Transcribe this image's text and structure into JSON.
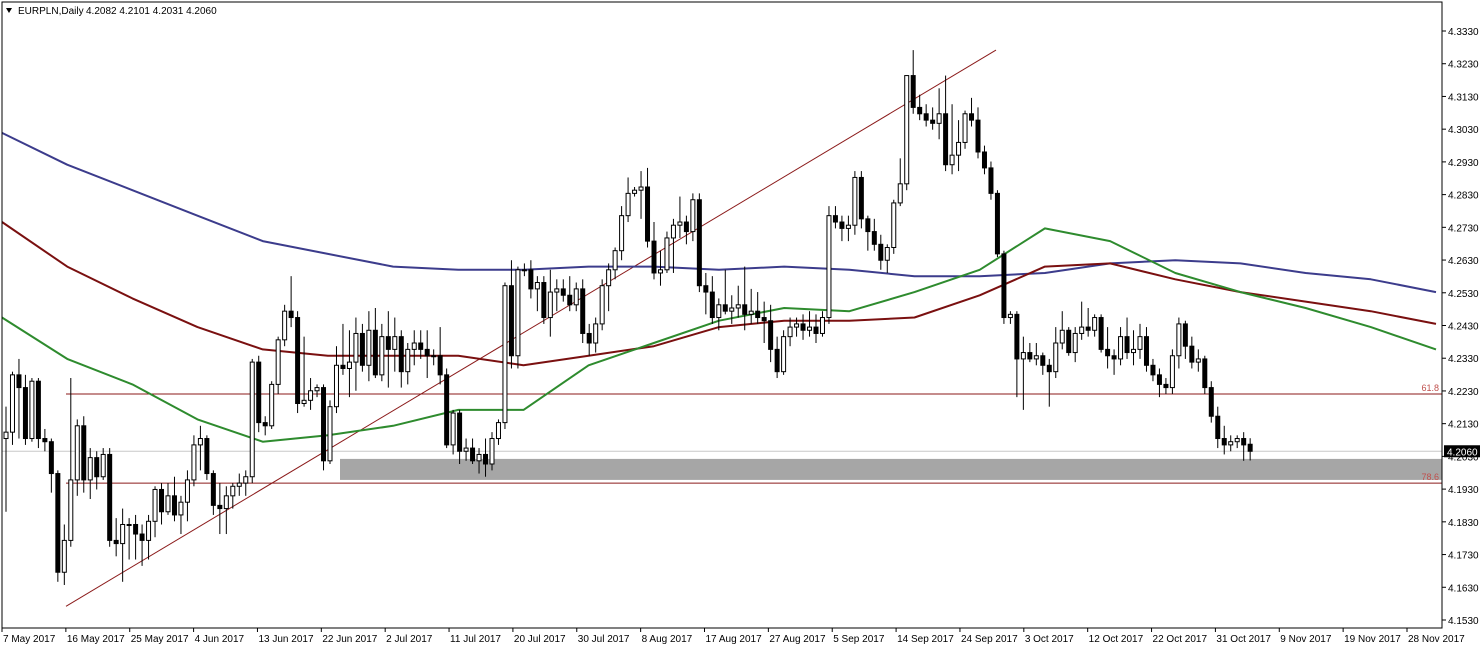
{
  "window": {
    "symbol_label": "EURPLN,Daily",
    "ohlc_label": "4.2082 4.2101 4.2031 4.2060",
    "current_price_label": "4.2060"
  },
  "chart_data": {
    "type": "candlestick",
    "symbol": "EURPLN",
    "timeframe": "Daily",
    "ylim": [
      4.153,
      4.338
    ],
    "y_ticks": [
      "4.3330",
      "4.3230",
      "4.3130",
      "4.3030",
      "4.2930",
      "4.2830",
      "4.2730",
      "4.2630",
      "4.2530",
      "4.2430",
      "4.2330",
      "4.2230",
      "4.2130",
      "4.2030",
      "4.1930",
      "4.1830",
      "4.1730",
      "4.1630",
      "4.1530"
    ],
    "x_ticks": [
      "7 May 2017",
      "16 May 2017",
      "25 May 2017",
      "4 Jun 2017",
      "13 Jun 2017",
      "22 Jun 2017",
      "2 Jul 2017",
      "11 Jul 2017",
      "20 Jul 2017",
      "30 Jul 2017",
      "8 Aug 2017",
      "17 Aug 2017",
      "27 Aug 2017",
      "5 Sep 2017",
      "14 Sep 2017",
      "24 Sep 2017",
      "3 Oct 2017",
      "12 Oct 2017",
      "22 Oct 2017",
      "31 Oct 2017",
      "9 Nov 2017",
      "19 Nov 2017",
      "28 Nov 2017"
    ],
    "colors": {
      "bull": "#ffffff",
      "bear": "#000000",
      "outline": "#000000",
      "ma_blue": "#3c3c8c",
      "ma_red": "#7a1010",
      "ma_green": "#2e8b2e",
      "fib_line": "#8b1a1a",
      "fib_label": "#c0504d",
      "zone": "#a6a6a6",
      "trend_line": "#8b1a1a",
      "grid_price_line": "#c8c8c8"
    },
    "price_line": 4.206,
    "zone": {
      "low": 4.197,
      "high": 4.2036
    },
    "fib_levels": [
      {
        "label": "61.8",
        "price": 4.224
      },
      {
        "label": "78.6",
        "price": 4.196
      }
    ],
    "trend_line": {
      "from": {
        "date": "16 May 2017",
        "price": 4.1573
      },
      "to": {
        "date": "26 Sep 2017",
        "price": 4.332
      }
    },
    "candles": [
      [
        4.21,
        4.22,
        4.187,
        4.212
      ],
      [
        4.212,
        4.231,
        4.208,
        4.23
      ],
      [
        4.23,
        4.235,
        4.21,
        4.226
      ],
      [
        4.226,
        4.23,
        4.208,
        4.21
      ],
      [
        4.21,
        4.229,
        4.209,
        4.228
      ],
      [
        4.228,
        4.229,
        4.207,
        4.21
      ],
      [
        4.21,
        4.213,
        4.206,
        4.209
      ],
      [
        4.209,
        4.21,
        4.193,
        4.199
      ],
      [
        4.199,
        4.2,
        4.165,
        4.168
      ],
      [
        4.168,
        4.183,
        4.164,
        4.178
      ],
      [
        4.178,
        4.229,
        4.176,
        4.197
      ],
      [
        4.197,
        4.216,
        4.192,
        4.214
      ],
      [
        4.214,
        4.217,
        4.193,
        4.197
      ],
      [
        4.197,
        4.207,
        4.191,
        4.204
      ],
      [
        4.204,
        4.206,
        4.194,
        4.198
      ],
      [
        4.198,
        4.207,
        4.197,
        4.205
      ],
      [
        4.205,
        4.207,
        4.176,
        4.178
      ],
      [
        4.178,
        4.185,
        4.173,
        4.177
      ],
      [
        4.177,
        4.188,
        4.165,
        4.183
      ],
      [
        4.183,
        4.185,
        4.172,
        4.183
      ],
      [
        4.183,
        4.186,
        4.172,
        4.18
      ],
      [
        4.18,
        4.183,
        4.17,
        4.178
      ],
      [
        4.178,
        4.186,
        4.172,
        4.184
      ],
      [
        4.184,
        4.195,
        4.179,
        4.194
      ],
      [
        4.194,
        4.196,
        4.183,
        4.187
      ],
      [
        4.187,
        4.196,
        4.186,
        4.192
      ],
      [
        4.192,
        4.198,
        4.184,
        4.186
      ],
      [
        4.186,
        4.192,
        4.18,
        4.19
      ],
      [
        4.19,
        4.2,
        4.184,
        4.197
      ],
      [
        4.197,
        4.211,
        4.195,
        4.208
      ],
      [
        4.208,
        4.214,
        4.2,
        4.21
      ],
      [
        4.21,
        4.211,
        4.197,
        4.199
      ],
      [
        4.199,
        4.2,
        4.186,
        4.189
      ],
      [
        4.189,
        4.196,
        4.18,
        4.188
      ],
      [
        4.188,
        4.195,
        4.18,
        4.192
      ],
      [
        4.192,
        4.196,
        4.188,
        4.195
      ],
      [
        4.195,
        4.199,
        4.192,
        4.196
      ],
      [
        4.196,
        4.2,
        4.192,
        4.198
      ],
      [
        4.198,
        4.235,
        4.196,
        4.234
      ],
      [
        4.234,
        4.236,
        4.212,
        4.215
      ],
      [
        4.215,
        4.217,
        4.211,
        4.214
      ],
      [
        4.214,
        4.228,
        4.213,
        4.227
      ],
      [
        4.227,
        4.242,
        4.224,
        4.241
      ],
      [
        4.241,
        4.252,
        4.239,
        4.25
      ],
      [
        4.25,
        4.261,
        4.245,
        4.248
      ],
      [
        4.248,
        4.25,
        4.218,
        4.221
      ],
      [
        4.221,
        4.242,
        4.22,
        4.222
      ],
      [
        4.222,
        4.229,
        4.219,
        4.225
      ],
      [
        4.225,
        4.227,
        4.223,
        4.226
      ],
      [
        4.226,
        4.227,
        4.2,
        4.203
      ],
      [
        4.203,
        4.222,
        4.202,
        4.22
      ],
      [
        4.22,
        4.239,
        4.218,
        4.233
      ],
      [
        4.233,
        4.246,
        4.23,
        4.232
      ],
      [
        4.232,
        4.244,
        4.223,
        4.234
      ],
      [
        4.234,
        4.248,
        4.225,
        4.243
      ],
      [
        4.243,
        4.246,
        4.231,
        4.233
      ],
      [
        4.233,
        4.25,
        4.228,
        4.244
      ],
      [
        4.244,
        4.251,
        4.229,
        4.23
      ],
      [
        4.23,
        4.246,
        4.228,
        4.242
      ],
      [
        4.242,
        4.25,
        4.226,
        4.238
      ],
      [
        4.238,
        4.248,
        4.231,
        4.242
      ],
      [
        4.242,
        4.244,
        4.226,
        4.231
      ],
      [
        4.231,
        4.24,
        4.227,
        4.238
      ],
      [
        4.238,
        4.244,
        4.233,
        4.24
      ],
      [
        4.24,
        4.244,
        4.235,
        4.238
      ],
      [
        4.238,
        4.244,
        4.229,
        4.236
      ],
      [
        4.236,
        4.238,
        4.233,
        4.236
      ],
      [
        4.236,
        4.245,
        4.227,
        4.23
      ],
      [
        4.23,
        4.232,
        4.207,
        4.208
      ],
      [
        4.208,
        4.219,
        4.205,
        4.218
      ],
      [
        4.218,
        4.219,
        4.202,
        4.206
      ],
      [
        4.206,
        4.21,
        4.203,
        4.207
      ],
      [
        4.207,
        4.21,
        4.202,
        4.203
      ],
      [
        4.203,
        4.207,
        4.199,
        4.205
      ],
      [
        4.205,
        4.21,
        4.198,
        4.202
      ],
      [
        4.202,
        4.212,
        4.2,
        4.21
      ],
      [
        4.21,
        4.216,
        4.208,
        4.215
      ],
      [
        4.215,
        4.259,
        4.213,
        4.258
      ],
      [
        4.258,
        4.266,
        4.232,
        4.236
      ],
      [
        4.236,
        4.264,
        4.232,
        4.263
      ],
      [
        4.263,
        4.265,
        4.261,
        4.263
      ],
      [
        4.263,
        4.266,
        4.254,
        4.257
      ],
      [
        4.257,
        4.261,
        4.25,
        4.259
      ],
      [
        4.259,
        4.261,
        4.246,
        4.248
      ],
      [
        4.248,
        4.263,
        4.242,
        4.256
      ],
      [
        4.256,
        4.26,
        4.25,
        4.257
      ],
      [
        4.257,
        4.26,
        4.253,
        4.255
      ],
      [
        4.255,
        4.261,
        4.25,
        4.252
      ],
      [
        4.252,
        4.259,
        4.25,
        4.257
      ],
      [
        4.257,
        4.26,
        4.24,
        4.243
      ],
      [
        4.243,
        4.246,
        4.236,
        4.24
      ],
      [
        4.24,
        4.248,
        4.237,
        4.246
      ],
      [
        4.246,
        4.26,
        4.244,
        4.258
      ],
      [
        4.258,
        4.265,
        4.25,
        4.263
      ],
      [
        4.263,
        4.27,
        4.26,
        4.269
      ],
      [
        4.269,
        4.283,
        4.266,
        4.28
      ],
      [
        4.28,
        4.292,
        4.278,
        4.287
      ],
      [
        4.287,
        4.289,
        4.286,
        4.288
      ],
      [
        4.288,
        4.294,
        4.279,
        4.289
      ],
      [
        4.289,
        4.295,
        4.27,
        4.272
      ],
      [
        4.272,
        4.278,
        4.26,
        4.262
      ],
      [
        4.262,
        4.269,
        4.258,
        4.263
      ],
      [
        4.263,
        4.275,
        4.262,
        4.273
      ],
      [
        4.273,
        4.279,
        4.262,
        4.277
      ],
      [
        4.277,
        4.286,
        4.273,
        4.278
      ],
      [
        4.278,
        4.28,
        4.271,
        4.275
      ],
      [
        4.275,
        4.287,
        4.272,
        4.285
      ],
      [
        4.285,
        4.287,
        4.256,
        4.258
      ],
      [
        4.258,
        4.262,
        4.249,
        4.256
      ],
      [
        4.256,
        4.261,
        4.246,
        4.248
      ],
      [
        4.248,
        4.254,
        4.244,
        4.252
      ],
      [
        4.252,
        4.263,
        4.249,
        4.25
      ],
      [
        4.25,
        4.255,
        4.246,
        4.251
      ],
      [
        4.251,
        4.258,
        4.248,
        4.252
      ],
      [
        4.252,
        4.264,
        4.244,
        4.249
      ],
      [
        4.249,
        4.257,
        4.246,
        4.25
      ],
      [
        4.25,
        4.256,
        4.246,
        4.248
      ],
      [
        4.248,
        4.253,
        4.24,
        4.247
      ],
      [
        4.247,
        4.252,
        4.234,
        4.238
      ],
      [
        4.238,
        4.242,
        4.229,
        4.231
      ],
      [
        4.231,
        4.244,
        4.23,
        4.242
      ],
      [
        4.242,
        4.248,
        4.239,
        4.245
      ],
      [
        4.245,
        4.248,
        4.242,
        4.246
      ],
      [
        4.246,
        4.249,
        4.241,
        4.244
      ],
      [
        4.244,
        4.25,
        4.242,
        4.245
      ],
      [
        4.245,
        4.249,
        4.24,
        4.243
      ],
      [
        4.243,
        4.25,
        4.242,
        4.248
      ],
      [
        4.248,
        4.283,
        4.246,
        4.28
      ],
      [
        4.28,
        4.283,
        4.276,
        4.278
      ],
      [
        4.278,
        4.28,
        4.272,
        4.276
      ],
      [
        4.276,
        4.28,
        4.272,
        4.277
      ],
      [
        4.277,
        4.294,
        4.274,
        4.292
      ],
      [
        4.292,
        4.294,
        4.276,
        4.279
      ],
      [
        4.279,
        4.28,
        4.269,
        4.275
      ],
      [
        4.275,
        4.279,
        4.269,
        4.271
      ],
      [
        4.271,
        4.274,
        4.263,
        4.266
      ],
      [
        4.266,
        4.271,
        4.262,
        4.27
      ],
      [
        4.27,
        4.285,
        4.268,
        4.284
      ],
      [
        4.284,
        4.298,
        4.283,
        4.29
      ],
      [
        4.29,
        4.324,
        4.288,
        4.324
      ],
      [
        4.324,
        4.332,
        4.312,
        4.314
      ],
      [
        4.314,
        4.318,
        4.31,
        4.312
      ],
      [
        4.312,
        4.315,
        4.308,
        4.31
      ],
      [
        4.31,
        4.314,
        4.307,
        4.309
      ],
      [
        4.309,
        4.32,
        4.304,
        4.312
      ],
      [
        4.312,
        4.324,
        4.294,
        4.296
      ],
      [
        4.296,
        4.315,
        4.293,
        4.299
      ],
      [
        4.299,
        4.31,
        4.294,
        4.303
      ],
      [
        4.303,
        4.313,
        4.301,
        4.312
      ],
      [
        4.312,
        4.317,
        4.308,
        4.31
      ],
      [
        4.31,
        4.314,
        4.298,
        4.3
      ],
      [
        4.3,
        4.302,
        4.293,
        4.295
      ],
      [
        4.295,
        4.297,
        4.285,
        4.287
      ],
      [
        4.287,
        4.288,
        4.267,
        4.268
      ],
      [
        4.268,
        4.269,
        4.246,
        4.248
      ],
      [
        4.248,
        4.25,
        4.246,
        4.249
      ],
      [
        4.249,
        4.25,
        4.223,
        4.235
      ],
      [
        4.235,
        4.242,
        4.219,
        4.237
      ],
      [
        4.237,
        4.24,
        4.234,
        4.235
      ],
      [
        4.235,
        4.24,
        4.233,
        4.236
      ],
      [
        4.236,
        4.237,
        4.23,
        4.233
      ],
      [
        4.233,
        4.235,
        4.22,
        4.231
      ],
      [
        4.231,
        4.245,
        4.229,
        4.24
      ],
      [
        4.24,
        4.25,
        4.238,
        4.244
      ],
      [
        4.244,
        4.245,
        4.236,
        4.237
      ],
      [
        4.237,
        4.245,
        4.234,
        4.243
      ],
      [
        4.243,
        4.253,
        4.241,
        4.245
      ],
      [
        4.245,
        4.251,
        4.242,
        4.244
      ],
      [
        4.244,
        4.249,
        4.242,
        4.248
      ],
      [
        4.248,
        4.249,
        4.237,
        4.238
      ],
      [
        4.238,
        4.245,
        4.232,
        4.236
      ],
      [
        4.236,
        4.238,
        4.23,
        4.235
      ],
      [
        4.235,
        4.245,
        4.233,
        4.242
      ],
      [
        4.242,
        4.248,
        4.235,
        4.237
      ],
      [
        4.237,
        4.244,
        4.233,
        4.238
      ],
      [
        4.238,
        4.246,
        4.235,
        4.242
      ],
      [
        4.242,
        4.245,
        4.231,
        4.233
      ],
      [
        4.233,
        4.235,
        4.228,
        4.23
      ],
      [
        4.23,
        4.232,
        4.223,
        4.227
      ],
      [
        4.227,
        4.229,
        4.224,
        4.226
      ],
      [
        4.226,
        4.238,
        4.224,
        4.236
      ],
      [
        4.236,
        4.248,
        4.232,
        4.246
      ],
      [
        4.246,
        4.247,
        4.235,
        4.239
      ],
      [
        4.239,
        4.242,
        4.232,
        4.234
      ],
      [
        4.234,
        4.238,
        4.231,
        4.235
      ],
      [
        4.235,
        4.236,
        4.224,
        4.226
      ],
      [
        4.226,
        4.228,
        4.215,
        4.217
      ],
      [
        4.217,
        4.22,
        4.207,
        4.21
      ],
      [
        4.21,
        4.214,
        4.205,
        4.208
      ],
      [
        4.208,
        4.211,
        4.206,
        4.209
      ],
      [
        4.209,
        4.211,
        4.207,
        4.21
      ],
      [
        4.21,
        4.212,
        4.203,
        4.208
      ],
      [
        4.2082,
        4.2101,
        4.2031,
        4.206
      ]
    ],
    "ma_slow_blue": [
      4.306,
      4.296,
      4.288,
      4.28,
      4.272,
      4.268,
      4.264,
      4.263,
      4.263,
      4.264,
      4.264,
      4.263,
      4.264,
      4.263,
      4.261,
      4.261,
      4.262,
      4.265,
      4.266,
      4.265,
      4.262,
      4.26,
      4.256
    ],
    "ma_mid_red": [
      4.278,
      4.264,
      4.254,
      4.245,
      4.238,
      4.236,
      4.236,
      4.236,
      4.233,
      4.236,
      4.239,
      4.245,
      4.247,
      4.247,
      4.248,
      4.255,
      4.264,
      4.265,
      4.26,
      4.256,
      4.253,
      4.25,
      4.246
    ],
    "ma_fast_green": [
      4.248,
      4.235,
      4.227,
      4.216,
      4.209,
      4.211,
      4.214,
      4.219,
      4.219,
      4.233,
      4.24,
      4.247,
      4.251,
      4.25,
      4.256,
      4.263,
      4.276,
      4.272,
      4.262,
      4.256,
      4.251,
      4.245,
      4.238
    ]
  }
}
